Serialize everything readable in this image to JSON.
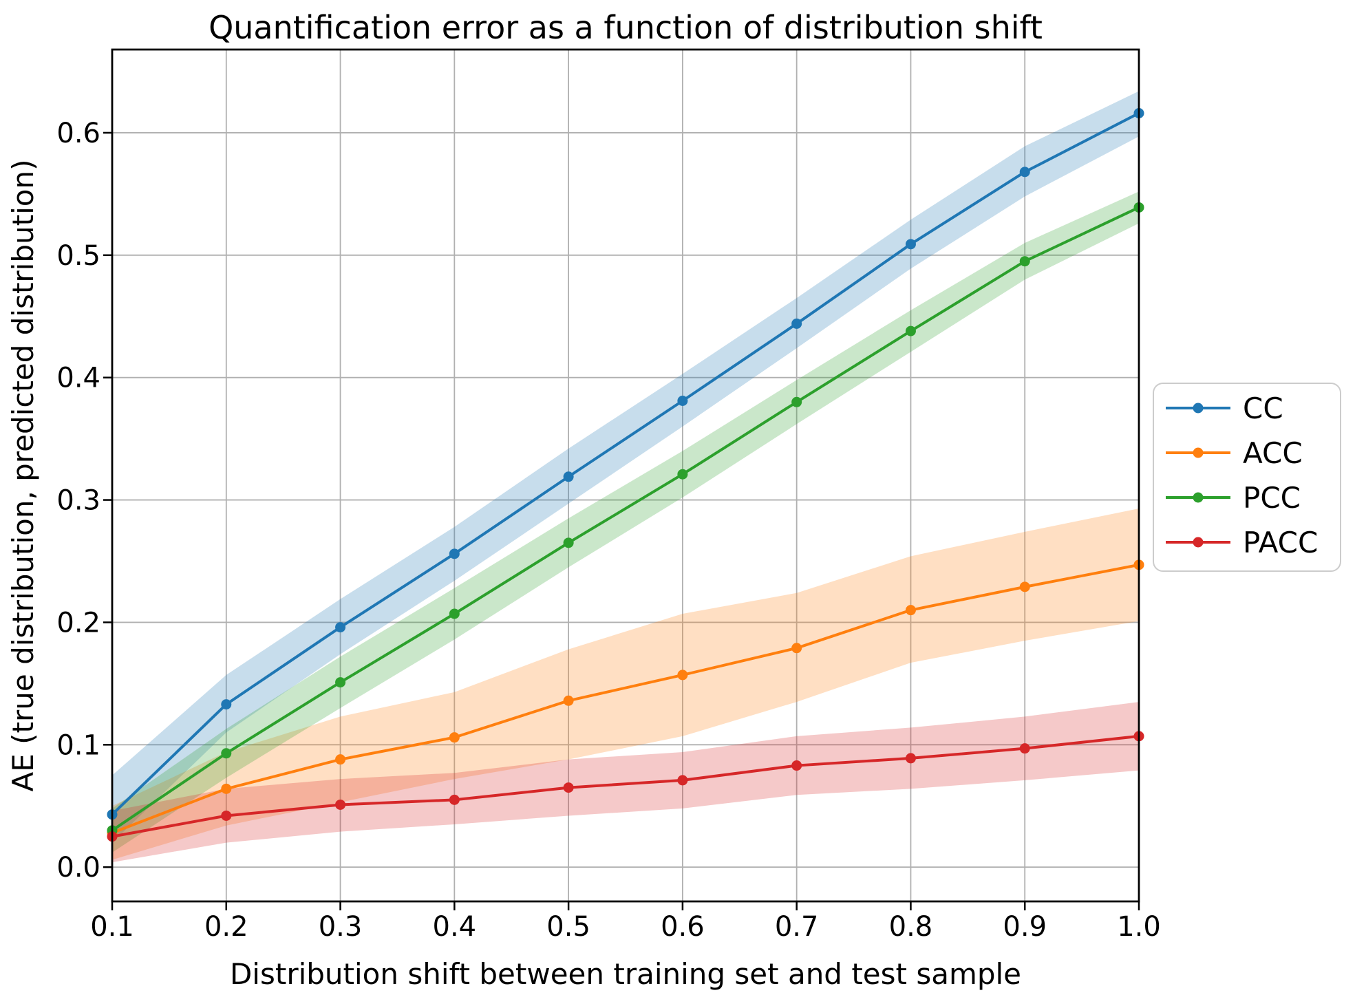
{
  "chart_data": {
    "type": "line",
    "title": "Quantification error as a function of distribution shift",
    "xlabel": "Distribution shift between training set and test sample",
    "ylabel": "AE (true distribution, predicted distribution)",
    "x": [
      0.1,
      0.2,
      0.3,
      0.4,
      0.5,
      0.6,
      0.7,
      0.8,
      0.9,
      1.0
    ],
    "xlim": [
      0.1,
      1.0
    ],
    "ylim": [
      -0.028,
      0.668
    ],
    "xticks": [
      0.1,
      0.2,
      0.3,
      0.4,
      0.5,
      0.6,
      0.7,
      0.8,
      0.9,
      1.0
    ],
    "xtick_labels": [
      "0.1",
      "0.2",
      "0.3",
      "0.4",
      "0.5",
      "0.6",
      "0.7",
      "0.8",
      "0.9",
      "1.0"
    ],
    "yticks": [
      0.0,
      0.1,
      0.2,
      0.3,
      0.4,
      0.5,
      0.6
    ],
    "ytick_labels": [
      "0.0",
      "0.1",
      "0.2",
      "0.3",
      "0.4",
      "0.5",
      "0.6"
    ],
    "grid": true,
    "marker": "circle",
    "band_opacity": 0.25,
    "legend": {
      "position": "right-of-axes",
      "labels": [
        "CC",
        "ACC",
        "PCC",
        "PACC"
      ]
    },
    "series": [
      {
        "name": "CC",
        "color": "#1f77b4",
        "values": [
          0.043,
          0.133,
          0.196,
          0.256,
          0.319,
          0.381,
          0.444,
          0.509,
          0.568,
          0.616
        ],
        "band_lower": [
          0.02,
          0.11,
          0.174,
          0.234,
          0.297,
          0.36,
          0.424,
          0.489,
          0.548,
          0.597
        ],
        "band_upper": [
          0.075,
          0.157,
          0.219,
          0.278,
          0.342,
          0.403,
          0.465,
          0.529,
          0.589,
          0.634
        ]
      },
      {
        "name": "ACC",
        "color": "#ff7f0e",
        "values": [
          0.028,
          0.064,
          0.088,
          0.106,
          0.136,
          0.157,
          0.179,
          0.21,
          0.229,
          0.247
        ],
        "band_lower": [
          0.006,
          0.034,
          0.053,
          0.072,
          0.088,
          0.107,
          0.135,
          0.167,
          0.185,
          0.201
        ],
        "band_upper": [
          0.05,
          0.094,
          0.123,
          0.143,
          0.178,
          0.207,
          0.224,
          0.254,
          0.274,
          0.293
        ]
      },
      {
        "name": "PCC",
        "color": "#2ca02c",
        "values": [
          0.03,
          0.093,
          0.151,
          0.207,
          0.265,
          0.321,
          0.38,
          0.438,
          0.495,
          0.539
        ],
        "band_lower": [
          0.012,
          0.073,
          0.13,
          0.186,
          0.245,
          0.302,
          0.362,
          0.421,
          0.48,
          0.526
        ],
        "band_upper": [
          0.048,
          0.113,
          0.172,
          0.228,
          0.285,
          0.34,
          0.398,
          0.455,
          0.51,
          0.552
        ]
      },
      {
        "name": "PACC",
        "color": "#d62728",
        "values": [
          0.025,
          0.042,
          0.051,
          0.055,
          0.065,
          0.071,
          0.083,
          0.089,
          0.097,
          0.107
        ],
        "band_lower": [
          0.004,
          0.02,
          0.029,
          0.035,
          0.042,
          0.048,
          0.059,
          0.064,
          0.071,
          0.079
        ],
        "band_upper": [
          0.046,
          0.064,
          0.072,
          0.077,
          0.088,
          0.094,
          0.107,
          0.114,
          0.123,
          0.135
        ]
      }
    ]
  }
}
